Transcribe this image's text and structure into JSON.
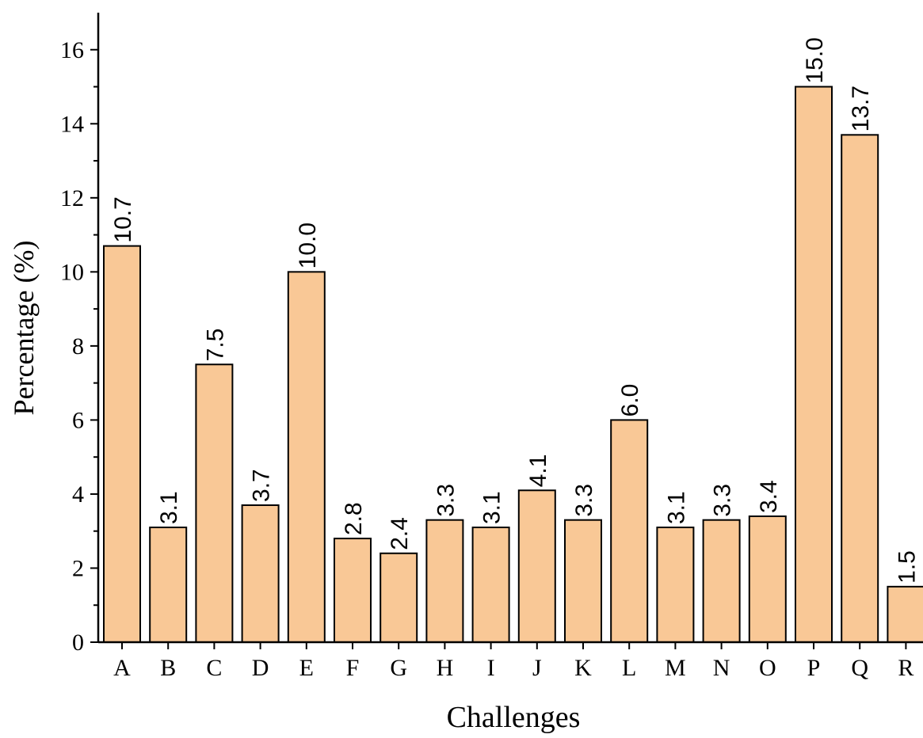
{
  "chart_data": {
    "type": "bar",
    "title": "",
    "xlabel": "Challenges",
    "ylabel": "Percentage (%)",
    "categories": [
      "A",
      "B",
      "C",
      "D",
      "E",
      "F",
      "G",
      "H",
      "I",
      "J",
      "K",
      "L",
      "M",
      "N",
      "O",
      "P",
      "Q",
      "R"
    ],
    "values": [
      10.7,
      3.1,
      7.5,
      3.7,
      10.0,
      2.8,
      2.4,
      3.3,
      3.1,
      4.1,
      3.3,
      6.0,
      3.1,
      3.3,
      3.4,
      15.0,
      13.7,
      1.5
    ],
    "value_labels": [
      "10.7",
      "3.1",
      "7.5",
      "3.7",
      "10.0",
      "2.8",
      "2.4",
      "3.3",
      "3.1",
      "4.1",
      "3.3",
      "6.0",
      "3.1",
      "3.3",
      "3.4",
      "15.0",
      "13.7",
      "1.5"
    ],
    "ylim": [
      0,
      17
    ],
    "yticks": [
      0,
      2,
      4,
      6,
      8,
      10,
      12,
      14,
      16
    ],
    "ytick_labels": [
      "0",
      "2",
      "4",
      "6",
      "8",
      "10",
      "12",
      "14",
      "16"
    ],
    "grid": false,
    "legend": "none",
    "bar_color": "#F9C896",
    "edge_color": "#000000"
  }
}
